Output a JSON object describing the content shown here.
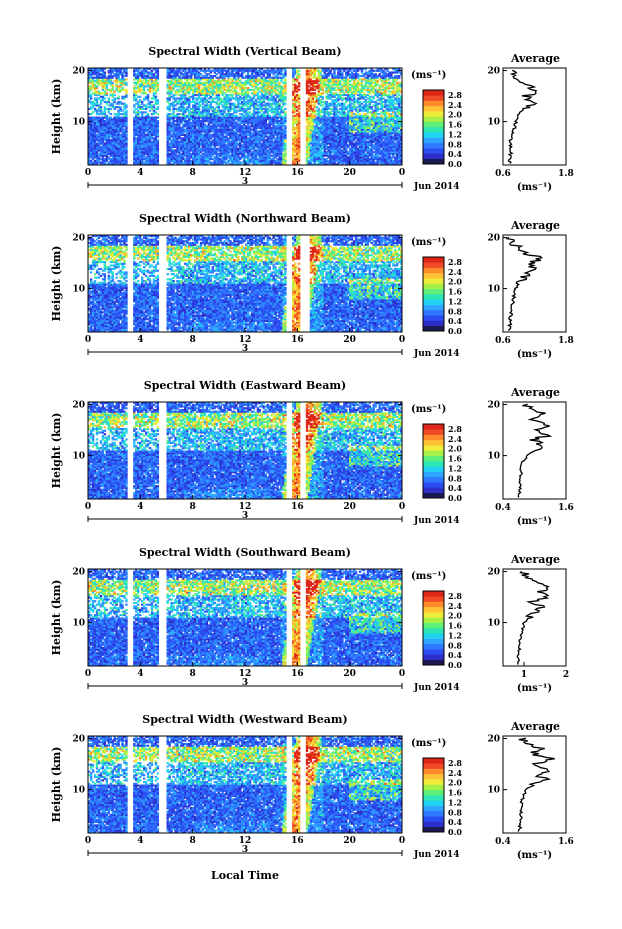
{
  "figure": {
    "x_label": "Local Time",
    "date_day": "3",
    "date_label": "Jun 2014",
    "colorbar_unit": "(ms⁻¹)",
    "average_unit": "(ms⁻¹)",
    "height_label": "Height (km)",
    "average_title": "Average",
    "time_ticks": [
      "0",
      "4",
      "8",
      "12",
      "16",
      "20",
      "0"
    ],
    "height_ticks": [
      "20",
      "10"
    ],
    "colorbar_ticks": [
      "2.8",
      "2.4",
      "2.0",
      "1.6",
      "1.2",
      "0.8",
      "0.4",
      "0.0"
    ]
  },
  "chart_data": [
    {
      "type": "heatmap",
      "title": "Spectral Width (Vertical Beam)",
      "beam": "vertical",
      "xlim": [
        0,
        24
      ],
      "ylim": [
        1.5,
        20.5
      ],
      "zlim": [
        0.0,
        3.0
      ],
      "data_gaps_hours": [
        [
          3.0,
          3.5
        ],
        [
          5.4,
          6.0
        ],
        [
          15.1,
          15.6
        ],
        [
          16.2,
          16.6
        ]
      ],
      "high_width_band_hours": [
        14.8,
        18.0
      ],
      "average_profile": {
        "xlim": [
          0.6,
          1.8
        ],
        "xticks": [
          "0.6",
          "1.8"
        ],
        "height_km": [
          2,
          4,
          6,
          8,
          10,
          12,
          14,
          15,
          16,
          17,
          18,
          19,
          20
        ],
        "width_ms": [
          0.72,
          0.75,
          0.74,
          0.8,
          0.85,
          0.95,
          1.2,
          1.0,
          1.3,
          1.05,
          0.9,
          0.8,
          0.75
        ]
      }
    },
    {
      "type": "heatmap",
      "title": "Spectral Width (Northward Beam)",
      "beam": "northward",
      "xlim": [
        0,
        24
      ],
      "ylim": [
        1.5,
        20.5
      ],
      "zlim": [
        0.0,
        3.0
      ],
      "data_gaps_hours": [
        [
          3.0,
          3.5
        ],
        [
          5.4,
          6.0
        ],
        [
          15.1,
          15.6
        ],
        [
          16.2,
          17.0
        ]
      ],
      "high_width_band_hours": [
        14.8,
        18.0
      ],
      "average_profile": {
        "xlim": [
          0.6,
          1.8
        ],
        "xticks": [
          "0.6",
          "1.8"
        ],
        "height_km": [
          2,
          4,
          6,
          8,
          10,
          12,
          14,
          15,
          16,
          17,
          18,
          19,
          20
        ],
        "width_ms": [
          0.72,
          0.74,
          0.76,
          0.8,
          0.85,
          0.95,
          1.2,
          1.1,
          1.35,
          1.0,
          0.9,
          0.8,
          0.75
        ]
      }
    },
    {
      "type": "heatmap",
      "title": "Spectral Width (Eastward Beam)",
      "beam": "eastward",
      "xlim": [
        0,
        24
      ],
      "ylim": [
        1.5,
        20.5
      ],
      "zlim": [
        0.0,
        3.0
      ],
      "data_gaps_hours": [
        [
          3.0,
          3.5
        ],
        [
          5.4,
          6.0
        ],
        [
          15.1,
          15.6
        ],
        [
          16.2,
          16.6
        ]
      ],
      "high_width_band_hours": [
        14.8,
        18.0
      ],
      "average_profile": {
        "xlim": [
          0.4,
          1.6
        ],
        "xticks": [
          "0.4",
          "1.6"
        ],
        "height_km": [
          2,
          4,
          6,
          8,
          10,
          11,
          12,
          13,
          14,
          15,
          16,
          17,
          18,
          19,
          20
        ],
        "width_ms": [
          0.7,
          0.72,
          0.74,
          0.75,
          0.85,
          1.0,
          1.15,
          0.95,
          1.25,
          1.1,
          1.3,
          1.0,
          1.2,
          0.9,
          0.8
        ]
      }
    },
    {
      "type": "heatmap",
      "title": "Spectral Width (Southward Beam)",
      "beam": "southward",
      "xlim": [
        0,
        24
      ],
      "ylim": [
        1.5,
        20.5
      ],
      "zlim": [
        0.0,
        3.0
      ],
      "data_gaps_hours": [
        [
          3.0,
          3.5
        ],
        [
          5.4,
          6.0
        ],
        [
          15.1,
          15.6
        ],
        [
          16.2,
          16.6
        ]
      ],
      "high_width_band_hours": [
        14.8,
        18.0
      ],
      "average_profile": {
        "xlim": [
          0.5,
          2.0
        ],
        "xticks": [
          "1",
          "2"
        ],
        "height_km": [
          2,
          4,
          6,
          8,
          10,
          11,
          12,
          13,
          14,
          15,
          16,
          17,
          18,
          19,
          20
        ],
        "width_ms": [
          0.85,
          0.88,
          0.9,
          0.95,
          1.0,
          1.1,
          1.3,
          1.45,
          1.2,
          1.55,
          1.35,
          1.6,
          1.3,
          1.1,
          0.95
        ]
      }
    },
    {
      "type": "heatmap",
      "title": "Spectral Width (Westward Beam)",
      "beam": "westward",
      "xlim": [
        0,
        24
      ],
      "ylim": [
        1.5,
        20.5
      ],
      "zlim": [
        0.0,
        3.0
      ],
      "data_gaps_hours": [
        [
          3.0,
          3.5
        ],
        [
          5.4,
          6.0
        ],
        [
          15.1,
          15.6
        ],
        [
          16.2,
          16.6
        ]
      ],
      "high_width_band_hours": [
        14.8,
        18.0
      ],
      "average_profile": {
        "xlim": [
          0.4,
          1.6
        ],
        "xticks": [
          "0.4",
          "1.6"
        ],
        "height_km": [
          2,
          4,
          6,
          8,
          10,
          11,
          12,
          13,
          14,
          15,
          16,
          17,
          18,
          19,
          20
        ],
        "width_ms": [
          0.72,
          0.74,
          0.75,
          0.76,
          0.85,
          1.0,
          1.2,
          1.05,
          1.3,
          1.0,
          1.35,
          1.0,
          1.1,
          0.85,
          0.8
        ]
      }
    }
  ],
  "colors": {
    "scale": [
      "#1a1a50",
      "#2e2ec8",
      "#2a4cf0",
      "#2f78ff",
      "#2ea6ff",
      "#22d2f2",
      "#2ee6b4",
      "#5ef07a",
      "#a8f048",
      "#eeee3a",
      "#ffc234",
      "#ff8c2a",
      "#f04a26",
      "#dd2618"
    ]
  }
}
